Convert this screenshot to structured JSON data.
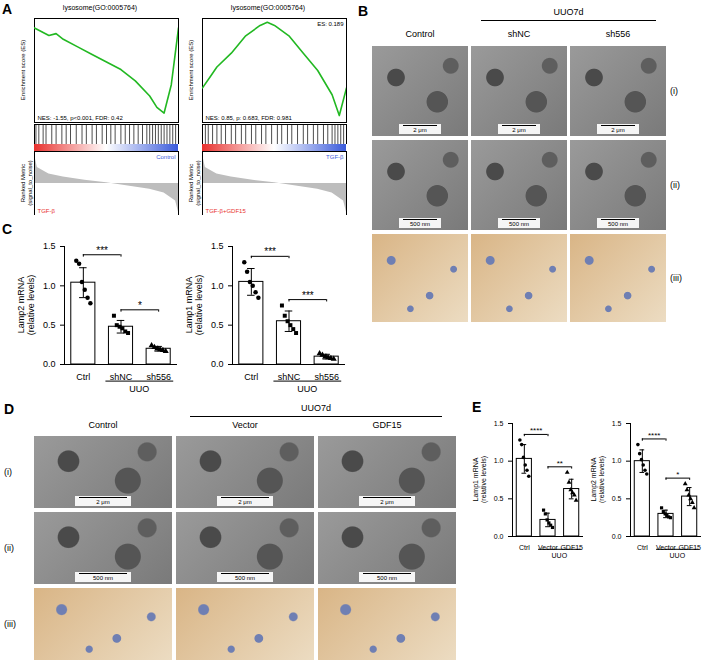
{
  "chart_data": [
    {
      "panel": "A",
      "type": "line",
      "title": "lysosome(GO:0005764)",
      "ylabel": "Enrichment score (ES)",
      "metric_label": "Ranked Metric (signal_to_noise)",
      "annotation": "NES: -1.55, p<0.001, FDR: 0.42",
      "x": [
        0,
        0.05,
        0.1,
        0.15,
        0.2,
        0.3,
        0.4,
        0.5,
        0.6,
        0.7,
        0.8,
        0.85,
        0.9,
        0.95,
        1
      ],
      "values": [
        0,
        -0.02,
        -0.04,
        -0.03,
        -0.06,
        -0.1,
        -0.14,
        -0.18,
        -0.22,
        -0.28,
        -0.36,
        -0.42,
        -0.45,
        -0.3,
        0
      ],
      "color": "#22b822",
      "xlim": [
        0,
        1
      ],
      "ylim": [
        -0.5,
        0.05
      ],
      "tick_labels": false,
      "hits": [
        0.01,
        0.03,
        0.06,
        0.08,
        0.12,
        0.15,
        0.19,
        0.22,
        0.25,
        0.29,
        0.33,
        0.36,
        0.4,
        0.43,
        0.47,
        0.5,
        0.53,
        0.56,
        0.6,
        0.63,
        0.66,
        0.69,
        0.72,
        0.75,
        0.78,
        0.8,
        0.82,
        0.84,
        0.86,
        0.88,
        0.9,
        0.92,
        0.94,
        0.96,
        0.98
      ],
      "ranked_metric": {
        "x": [
          0,
          0.02,
          0.1,
          0.2,
          0.35,
          0.5,
          0.65,
          0.8,
          0.9,
          0.98,
          1
        ],
        "values": [
          0.9,
          0.5,
          0.3,
          0.2,
          0.1,
          0.02,
          -0.08,
          -0.18,
          -0.3,
          -0.55,
          -0.9
        ],
        "ylim": [
          -1,
          1
        ]
      },
      "phenotypes": [
        {
          "label": "TGF-β",
          "color": "#e8312e"
        },
        {
          "label": "Control",
          "color": "#3b5bdb"
        }
      ]
    },
    {
      "panel": "A",
      "type": "line",
      "title": "lysosome(GO:0005764)",
      "ylabel": "Enrichment score (ES)",
      "metric_label": "Ranked Metric (signal_to_noise)",
      "annotation": "NES: 0.85, p: 0.683, FDR: 0.981",
      "peak_label": "ES: 0.189",
      "x": [
        0,
        0.05,
        0.1,
        0.2,
        0.3,
        0.4,
        0.45,
        0.5,
        0.6,
        0.7,
        0.8,
        0.9,
        0.95,
        1
      ],
      "values": [
        0,
        0.03,
        0.06,
        0.1,
        0.15,
        0.18,
        0.189,
        0.18,
        0.15,
        0.1,
        0.05,
        -0.02,
        -0.08,
        0
      ],
      "color": "#22b822",
      "xlim": [
        0,
        1
      ],
      "ylim": [
        -0.1,
        0.2
      ],
      "tick_labels": false,
      "hits": [
        0.02,
        0.04,
        0.07,
        0.1,
        0.13,
        0.16,
        0.2,
        0.23,
        0.27,
        0.3,
        0.34,
        0.37,
        0.41,
        0.44,
        0.48,
        0.52,
        0.55,
        0.59,
        0.62,
        0.66,
        0.7,
        0.73,
        0.77,
        0.8,
        0.84,
        0.87,
        0.9,
        0.92,
        0.94,
        0.96,
        0.98
      ],
      "ranked_metric": {
        "x": [
          0,
          0.02,
          0.1,
          0.2,
          0.35,
          0.5,
          0.65,
          0.8,
          0.9,
          0.98,
          1
        ],
        "values": [
          0.9,
          0.5,
          0.3,
          0.2,
          0.1,
          0.02,
          -0.08,
          -0.18,
          -0.3,
          -0.55,
          -0.9
        ],
        "ylim": [
          -1,
          1
        ]
      },
      "phenotypes": [
        {
          "label": "TGF-β+GDF15",
          "color": "#e8312e"
        },
        {
          "label": "TGF-β",
          "color": "#3b5bdb"
        }
      ]
    },
    {
      "panel": "C",
      "type": "bar",
      "ylabel": [
        "Lamp2 mRNA",
        "(relative levels)"
      ],
      "categories": [
        "Ctrl",
        "shNC",
        "sh556"
      ],
      "values": [
        1.04,
        0.48,
        0.2
      ],
      "errors": [
        0.19,
        0.08,
        0.03
      ],
      "points": [
        [
          1.32,
          1.28,
          1.05,
          0.95,
          0.85,
          0.78
        ],
        [
          0.62,
          0.5,
          0.48,
          0.46,
          0.42,
          0.4
        ],
        [
          0.24,
          0.22,
          0.2,
          0.19,
          0.18,
          0.17
        ]
      ],
      "markers": [
        "circle",
        "square",
        "triangle"
      ],
      "color": "#ffffff",
      "group": {
        "label": "UUO",
        "categories": [
          "shNC",
          "sh556"
        ]
      },
      "significance": [
        {
          "from": "Ctrl",
          "to": "shNC",
          "label": "***"
        },
        {
          "from": "shNC",
          "to": "sh556",
          "label": "*"
        }
      ],
      "ylim": [
        0,
        1.5
      ],
      "yticks": [
        {
          "value": 0,
          "label": "0.0"
        },
        0.5,
        {
          "value": 1,
          "label": "1.0"
        },
        1.5
      ]
    },
    {
      "panel": "C",
      "type": "bar",
      "ylabel": [
        "Lamp1 mRNA",
        "(relative levels)"
      ],
      "categories": [
        "Ctrl",
        "shNC",
        "sh556"
      ],
      "values": [
        1.05,
        0.55,
        0.1
      ],
      "errors": [
        0.17,
        0.13,
        0.03
      ],
      "points": [
        [
          1.3,
          1.18,
          1.05,
          1.0,
          0.92,
          0.85
        ],
        [
          0.75,
          0.62,
          0.55,
          0.5,
          0.45,
          0.4
        ],
        [
          0.14,
          0.12,
          0.1,
          0.09,
          0.08,
          0.07
        ]
      ],
      "markers": [
        "circle",
        "square",
        "triangle"
      ],
      "color": "#ffffff",
      "group": {
        "label": "UUO",
        "categories": [
          "shNC",
          "sh556"
        ]
      },
      "significance": [
        {
          "from": "Ctrl",
          "to": "shNC",
          "label": "***"
        },
        {
          "from": "shNC",
          "to": "sh556",
          "label": "***"
        }
      ],
      "ylim": [
        0,
        1.5
      ],
      "yticks": [
        {
          "value": 0,
          "label": "0.0"
        },
        0.5,
        {
          "value": 1,
          "label": "1.0"
        },
        1.5
      ]
    },
    {
      "panel": "E",
      "type": "bar",
      "ylabel": [
        "Lamp1 mRNA",
        "(relative levels)"
      ],
      "categories": [
        "Ctrl",
        "Vector",
        "GDF15"
      ],
      "values": [
        1.03,
        0.22,
        0.63
      ],
      "errors": [
        0.19,
        0.09,
        0.13
      ],
      "points": [
        [
          1.28,
          1.22,
          1.05,
          0.95,
          0.88,
          0.8
        ],
        [
          0.35,
          0.3,
          0.22,
          0.18,
          0.15,
          0.12
        ],
        [
          0.85,
          0.72,
          0.62,
          0.58,
          0.55,
          0.48
        ]
      ],
      "markers": [
        "circle",
        "square",
        "triangle"
      ],
      "color": "#ffffff",
      "group": {
        "label": "UUO",
        "categories": [
          "Vector",
          "GDF15"
        ]
      },
      "significance": [
        {
          "from": "Ctrl",
          "to": "Vector",
          "label": "****"
        },
        {
          "from": "Vector",
          "to": "GDF15",
          "label": "**"
        }
      ],
      "ylim": [
        0,
        1.5
      ],
      "yticks": [
        {
          "value": 0,
          "label": "0.0"
        },
        0.5,
        {
          "value": 1,
          "label": "1.0"
        },
        1.5
      ]
    },
    {
      "panel": "E",
      "type": "bar",
      "ylabel": [
        "Lamp2 mRNA",
        "(relative levels)"
      ],
      "categories": [
        "Ctrl",
        "Vector",
        "GDF15"
      ],
      "values": [
        1.0,
        0.3,
        0.53
      ],
      "errors": [
        0.15,
        0.05,
        0.12
      ],
      "points": [
        [
          1.22,
          1.1,
          1.02,
          0.95,
          0.88,
          0.83
        ],
        [
          0.38,
          0.33,
          0.3,
          0.28,
          0.26,
          0.25
        ],
        [
          0.7,
          0.62,
          0.55,
          0.5,
          0.45,
          0.38
        ]
      ],
      "markers": [
        "circle",
        "square",
        "triangle"
      ],
      "color": "#ffffff",
      "group": {
        "label": "UUO",
        "categories": [
          "Vector",
          "GDF15"
        ]
      },
      "significance": [
        {
          "from": "Ctrl",
          "to": "Vector",
          "label": "****"
        },
        {
          "from": "Vector",
          "to": "GDF15",
          "label": "*"
        }
      ],
      "ylim": [
        0,
        1.5
      ],
      "yticks": [
        {
          "value": 0,
          "label": "0.0"
        },
        0.5,
        {
          "value": 1,
          "label": "1.0"
        },
        1.5
      ]
    }
  ],
  "image_panels": [
    {
      "panel": "B",
      "columns": [
        "Control",
        "shNC",
        "sh556"
      ],
      "group": {
        "label": "UUO7d",
        "columns": [
          "shNC",
          "sh556"
        ]
      },
      "rows": [
        "(i)",
        "(ii)",
        "(iii)"
      ],
      "scale_bars": [
        {
          "row": "(i)",
          "label": "2 μm"
        },
        {
          "row": "(ii)",
          "label": "500 nm"
        }
      ]
    },
    {
      "panel": "D",
      "columns": [
        "Control",
        "Vector",
        "GDF15"
      ],
      "group": {
        "label": "UUO7d",
        "columns": [
          "Vector",
          "GDF15"
        ]
      },
      "rows": [
        "(i)",
        "(ii)",
        "(iii)"
      ],
      "scale_bars": [
        {
          "row": "(i)",
          "label": "2 μm"
        },
        {
          "row": "(ii)",
          "label": "500 nm"
        }
      ]
    }
  ]
}
